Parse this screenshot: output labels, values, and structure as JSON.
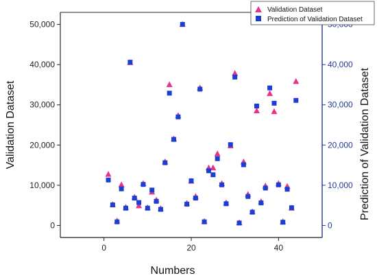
{
  "chart_data": {
    "type": "scatter",
    "xlabel": "Numbers",
    "ylabel_left": "Validation Dataset",
    "ylabel_right": "Prediction of Validation Dataset",
    "xlim": [
      -10,
      50
    ],
    "ylim": [
      -3000,
      53000
    ],
    "x_ticks": [
      "0",
      "20",
      "40"
    ],
    "x_tick_values": [
      0,
      20,
      40
    ],
    "y_ticks_left": [
      "0",
      "10,000",
      "20,000",
      "30,000",
      "40,000",
      "50,000"
    ],
    "y_ticks_right": [
      "0",
      "10,000",
      "20,000",
      "30,000",
      "40,000",
      "50,000"
    ],
    "y_tick_values": [
      0,
      10000,
      20000,
      30000,
      40000,
      50000
    ],
    "grid": false,
    "legend_position": "top-right",
    "series": [
      {
        "name": "Validation Dataset",
        "marker": "triangle",
        "color": "#e8338a",
        "x": [
          1,
          2,
          3,
          4,
          5,
          6,
          7,
          8,
          9,
          10,
          11,
          12,
          13,
          14,
          15,
          16,
          17,
          18,
          19,
          20,
          21,
          22,
          23,
          24,
          25,
          26,
          27,
          28,
          29,
          30,
          31,
          32,
          33,
          34,
          35,
          36,
          37,
          38,
          39,
          40,
          41,
          42,
          43,
          44
        ],
        "y": [
          12700,
          5200,
          1100,
          10100,
          4500,
          40500,
          7000,
          4900,
          10400,
          4400,
          8300,
          6300,
          4200,
          15800,
          35000,
          21500,
          27300,
          50000,
          5500,
          11000,
          7200,
          34200,
          1000,
          14300,
          14300,
          17800,
          10400,
          5600,
          19800,
          37800,
          700,
          15800,
          7700,
          3400,
          28500,
          5900,
          9800,
          32800,
          28300,
          10400,
          900,
          9700,
          4300,
          35800
        ]
      },
      {
        "name": "Prediction of Validation Dataset",
        "marker": "square",
        "color": "#1a3fd1",
        "x": [
          1,
          2,
          3,
          4,
          5,
          6,
          7,
          8,
          9,
          10,
          11,
          12,
          13,
          14,
          15,
          16,
          17,
          18,
          19,
          20,
          21,
          22,
          23,
          24,
          25,
          26,
          27,
          28,
          29,
          30,
          31,
          32,
          33,
          34,
          35,
          36,
          37,
          38,
          39,
          40,
          41,
          42,
          43,
          44
        ],
        "y": [
          11300,
          5100,
          900,
          9100,
          4300,
          40600,
          6800,
          5700,
          10200,
          4300,
          8800,
          6000,
          4000,
          15600,
          32900,
          21400,
          27000,
          50000,
          5300,
          11100,
          6800,
          33900,
          900,
          13600,
          12600,
          16600,
          10100,
          5400,
          20100,
          36900,
          600,
          15100,
          7200,
          3300,
          29700,
          5600,
          9300,
          34200,
          30400,
          10100,
          800,
          9000,
          4400,
          31100
        ]
      }
    ]
  }
}
